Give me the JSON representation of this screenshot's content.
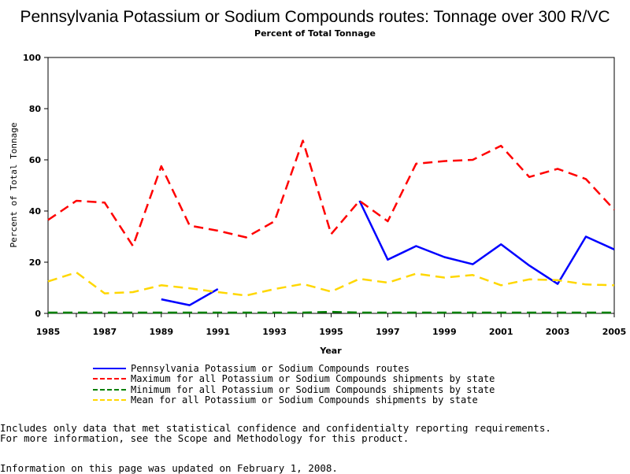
{
  "header": {
    "title": "Pennsylvania Potassium or Sodium Compounds routes: Tonnage over 300 R/VC",
    "subtitle": "Percent of Total Tonnage"
  },
  "chart_data": {
    "type": "line",
    "title": "Pennsylvania Potassium or Sodium Compounds routes: Tonnage over 300 R/VC",
    "subtitle": "Percent of Total Tonnage",
    "xlabel": "Year",
    "ylabel": "Percent of Total Tonnage",
    "xlim": [
      1985,
      2005
    ],
    "ylim": [
      0,
      100
    ],
    "xticks": [
      "1985",
      "1987",
      "1989",
      "1991",
      "1993",
      "1995",
      "1997",
      "1999",
      "2001",
      "2003",
      "2005"
    ],
    "yticks": [
      "0",
      "20",
      "40",
      "60",
      "80",
      "100"
    ],
    "x": [
      1985,
      1986,
      1987,
      1988,
      1989,
      1990,
      1991,
      1992,
      1993,
      1994,
      1995,
      1996,
      1997,
      1998,
      1999,
      2000,
      2001,
      2002,
      2003,
      2004,
      2005
    ],
    "series": [
      {
        "name": "Pennsylvania Potassium or Sodium Compounds routes",
        "color": "#0000ff",
        "dash": "solid",
        "values": [
          null,
          null,
          null,
          null,
          5.5,
          3.2,
          9.5,
          null,
          null,
          null,
          null,
          44,
          21,
          26.3,
          22,
          19.2,
          27,
          18.7,
          11.5,
          30,
          25
        ]
      },
      {
        "name": "Maximum for all Potassium or Sodium Compounds shipments by state",
        "color": "#ff0000",
        "dash": "dashed",
        "values": [
          36.5,
          44,
          43.3,
          26.3,
          57.5,
          34.3,
          32.3,
          29.7,
          36,
          67.5,
          31,
          44,
          36,
          58.5,
          59.5,
          60,
          65.5,
          53.3,
          56.5,
          52.5,
          40.5
        ]
      },
      {
        "name": "Minimum for all Potassium or Sodium Compounds shipments by state",
        "color": "#008000",
        "dash": "dashed",
        "values": [
          0.3,
          0.3,
          0.3,
          0.3,
          0.3,
          0.3,
          0.3,
          0.3,
          0.3,
          0.3,
          0.6,
          0.3,
          0.3,
          0.3,
          0.3,
          0.3,
          0.3,
          0.3,
          0.3,
          0.3,
          0.3
        ]
      },
      {
        "name": "Mean for all Potassium or Sodium Compounds shipments by state",
        "color": "#ffd700",
        "dash": "dashed",
        "values": [
          12.5,
          16,
          7.8,
          8.3,
          11,
          9.8,
          8.3,
          7,
          9.5,
          11.5,
          8.5,
          13.5,
          12,
          15.5,
          14,
          15,
          11,
          13.3,
          13,
          11.3,
          11
        ]
      }
    ],
    "grid": false,
    "legend_placement": "bottom"
  },
  "notes": {
    "line1": "Includes only data that met statistical confidence and confidentialty reporting requirements.",
    "line2": "For more information, see the Scope and Methodology for this product.",
    "updated": "Information on this page was updated on February 1, 2008."
  }
}
